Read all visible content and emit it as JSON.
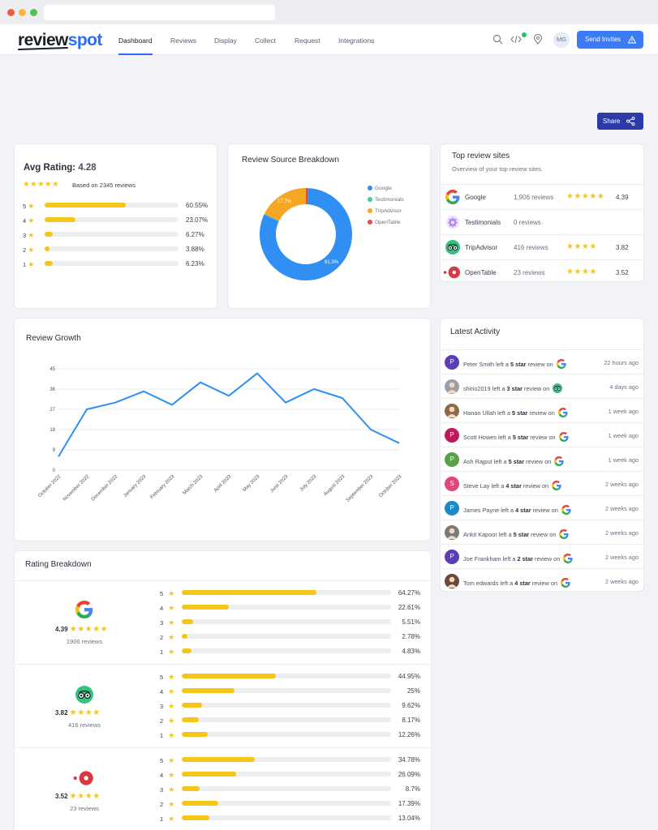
{
  "app": {
    "logo_main": "review",
    "logo_accent": "spot"
  },
  "nav": {
    "items": [
      "Dashboard",
      "Reviews",
      "Display",
      "Collect",
      "Request",
      "Integrations"
    ],
    "user_initials": "MG",
    "send_invites": "Send Invites"
  },
  "share_label": "Share",
  "avg_rating": {
    "title": "Avg Rating:",
    "value": "4.28",
    "based_on": "Based on 2345 reviews",
    "rows": [
      {
        "star": "5",
        "pct": "60.55%",
        "fill": 60.55
      },
      {
        "star": "4",
        "pct": "23.07%",
        "fill": 23.07
      },
      {
        "star": "3",
        "pct": "6.27%",
        "fill": 6.27
      },
      {
        "star": "2",
        "pct": "3.88%",
        "fill": 3.88
      },
      {
        "star": "1",
        "pct": "6.23%",
        "fill": 6.23
      }
    ]
  },
  "source_breakdown": {
    "title": "Review Source Breakdown",
    "legend": [
      "Google",
      "Testimonials",
      "TripAdvisor",
      "OpenTable"
    ],
    "colors": {
      "Google": "#2f8ff2",
      "Testimonials": "#3ecf8e",
      "TripAdvisor": "#f5a623",
      "OpenTable": "#e5484d"
    },
    "label_google": "81.3%",
    "label_tripadvisor": "17.7%"
  },
  "top_sites": {
    "title": "Top review sites",
    "subtitle": "Overview of your top review sites.",
    "rows": [
      {
        "name": "Google",
        "count": "1,906 reviews",
        "stars": "★★★★★",
        "rating": "4.39"
      },
      {
        "name": "Testimonials",
        "count": "0 reviews",
        "stars": "",
        "rating": ""
      },
      {
        "name": "TripAdvisor",
        "count": "416 reviews",
        "stars": "★★★★",
        "rating": "3.82"
      },
      {
        "name": "OpenTable",
        "count": "23 reviews",
        "stars": "★★★★",
        "rating": "3.52"
      }
    ]
  },
  "review_growth": {
    "title": "Review Growth"
  },
  "chart_data": {
    "type": "line",
    "title": "Review Growth",
    "x": [
      "October 2022",
      "November 2022",
      "December 2022",
      "January 2023",
      "February 2023",
      "March 2023",
      "April 2023",
      "May 2023",
      "June 2023",
      "July 2023",
      "August 2023",
      "September 2023",
      "October 2023"
    ],
    "series": [
      {
        "values": [
          6,
          27,
          30,
          35,
          29,
          39,
          33,
          43,
          30,
          36,
          32,
          18,
          12
        ]
      }
    ],
    "yticks": [
      0,
      9,
      18,
      27,
      36,
      45
    ],
    "ylim": [
      0,
      45
    ],
    "grid": true,
    "line_color": "#2f8ff2"
  },
  "latest_activity": {
    "title": "Latest Activity",
    "rows": [
      {
        "initial": "P",
        "color": "#5b3fb3",
        "name": "Peter Smith",
        "stars": "5 star",
        "source": "google",
        "time": "22 hours ago"
      },
      {
        "initial": "",
        "color": "#9aa0a8",
        "name": "shirio2019",
        "stars": "3 star",
        "source": "tripadvisor",
        "time": "4 days ago"
      },
      {
        "initial": "",
        "color": "#8a6a4a",
        "name": "Hanan Ullah",
        "stars": "5 star",
        "source": "google",
        "time": "1 week ago"
      },
      {
        "initial": "P",
        "color": "#c2185b",
        "name": "Scott Howes",
        "stars": "5 star",
        "source": "google",
        "time": "1 week ago"
      },
      {
        "initial": "P",
        "color": "#5aa14a",
        "name": "Ash Rajput",
        "stars": "5 star",
        "source": "google",
        "time": "1 week ago"
      },
      {
        "initial": "S",
        "color": "#e0457b",
        "name": "Steve Lay",
        "stars": "4 star",
        "source": "google",
        "time": "2 weeks ago"
      },
      {
        "initial": "P",
        "color": "#1e88c8",
        "name": "James Payne",
        "stars": "4 star",
        "source": "google",
        "time": "2 weeks ago"
      },
      {
        "initial": "",
        "color": "#7a7a7a",
        "name": "Ankit Kapoor",
        "stars": "5 star",
        "source": "google",
        "time": "2 weeks ago"
      },
      {
        "initial": "P",
        "color": "#5b3fb3",
        "name": "Joe Frankham",
        "stars": "2 star",
        "source": "google",
        "time": "2 weeks ago"
      },
      {
        "initial": "",
        "color": "#6a4a3a",
        "name": "Tom edwards",
        "stars": "4 star",
        "source": "google",
        "time": "2 weeks ago"
      }
    ],
    "left_a": "left a",
    "review_on": "review on"
  },
  "rating_breakdown": {
    "title": "Rating Breakdown",
    "sources": [
      {
        "name": "google",
        "rating": "4.39",
        "count": "1906 reviews",
        "rows": [
          {
            "star": "5",
            "pct": "64.27%",
            "fill": 64.27
          },
          {
            "star": "4",
            "pct": "22.61%",
            "fill": 22.61
          },
          {
            "star": "3",
            "pct": "5.51%",
            "fill": 5.51
          },
          {
            "star": "2",
            "pct": "2.78%",
            "fill": 2.78
          },
          {
            "star": "1",
            "pct": "4.83%",
            "fill": 4.83
          }
        ]
      },
      {
        "name": "tripadvisor",
        "rating": "3.82",
        "count": "416 reviews",
        "rows": [
          {
            "star": "5",
            "pct": "44.95%",
            "fill": 44.95
          },
          {
            "star": "4",
            "pct": "25%",
            "fill": 25
          },
          {
            "star": "3",
            "pct": "9.62%",
            "fill": 9.62
          },
          {
            "star": "2",
            "pct": "8.17%",
            "fill": 8.17
          },
          {
            "star": "1",
            "pct": "12.26%",
            "fill": 12.26
          }
        ]
      },
      {
        "name": "opentable",
        "rating": "3.52",
        "count": "23 reviews",
        "rows": [
          {
            "star": "5",
            "pct": "34.78%",
            "fill": 34.78
          },
          {
            "star": "4",
            "pct": "26.09%",
            "fill": 26.09
          },
          {
            "star": "3",
            "pct": "8.7%",
            "fill": 8.7
          },
          {
            "star": "2",
            "pct": "17.39%",
            "fill": 17.39
          },
          {
            "star": "1",
            "pct": "13.04%",
            "fill": 13.04
          }
        ]
      }
    ]
  },
  "icons": [
    "search-icon",
    "code-icon",
    "location-icon",
    "warning-icon",
    "share-icon",
    "google-icon",
    "testimonials-icon",
    "tripadvisor-icon",
    "opentable-icon"
  ]
}
